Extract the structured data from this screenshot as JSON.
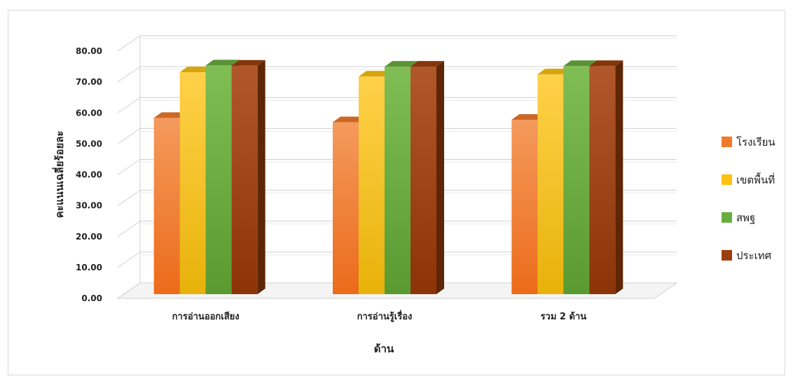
{
  "chart_data": {
    "type": "bar",
    "categories": [
      "การอ่านออกเสียง",
      "การอ่านรู้เรื่อง",
      "รวม 2 ด้าน"
    ],
    "series": [
      {
        "name": "โรงเรียน",
        "values": [
          60.2,
          58.8,
          59.6
        ],
        "color": "#f07a2b"
      },
      {
        "name": "เขตพื้นที่",
        "values": [
          75.0,
          73.6,
          74.3
        ],
        "color": "#fcc20f"
      },
      {
        "name": "สพฐ",
        "values": [
          77.2,
          76.8,
          77.0
        ],
        "color": "#6aad3f"
      },
      {
        "name": "ประเทศ",
        "values": [
          77.1,
          76.8,
          77.0
        ],
        "color": "#9c3f0c"
      }
    ],
    "xlabel": "ด้าน",
    "ylabel": "คะแนนเฉลี่ยร้อยละ",
    "ylim": [
      0,
      80
    ],
    "yticks": [
      "0.00",
      "10.00",
      "20.00",
      "30.00",
      "40.00",
      "50.00",
      "60.00",
      "70.00",
      "80.00"
    ],
    "grid": true,
    "legend": "right"
  }
}
